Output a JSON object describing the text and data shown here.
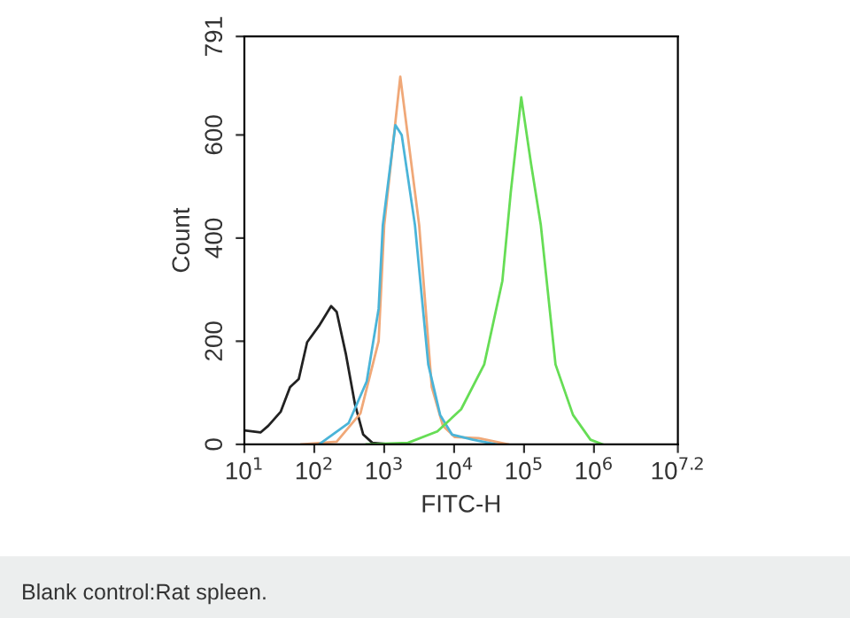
{
  "chart_data": {
    "type": "line",
    "xlabel": "FITC-H",
    "ylabel": "Count",
    "log": "x",
    "xlim": [
      10,
      15848932
    ],
    "ylim": [
      0,
      791
    ],
    "xticks": [
      {
        "value": 10,
        "label": "10$^{1}$"
      },
      {
        "value": 100,
        "label": "10$^{2}$"
      },
      {
        "value": 1000,
        "label": "10$^{3}$"
      },
      {
        "value": 10000,
        "label": "10$^{4}$"
      },
      {
        "value": 100000,
        "label": "10$^{5}$"
      },
      {
        "value": 1000000,
        "label": "10$^{6}$"
      },
      {
        "value": 15848932,
        "label": "10$^{7.2}$"
      }
    ],
    "yticks": [
      0,
      200,
      400,
      600,
      791
    ],
    "grid": false,
    "marker": "none",
    "line_style": "solid",
    "annotations": [
      "Blank control:Rat spleen."
    ],
    "series": [
      {
        "color": "#222222",
        "x": [
          10,
          17,
          22,
          33,
          45,
          60,
          79,
          117,
          174,
          209,
          282,
          380,
          501,
          676,
          1202
        ],
        "values": [
          27,
          23,
          36,
          63,
          111,
          127,
          198,
          230,
          268,
          257,
          176,
          79,
          19,
          3,
          0
        ]
      },
      {
        "color": "#f0a878",
        "x": [
          66,
          209,
          457,
          832,
          1000,
          1698,
          3162,
          4786,
          6918,
          10233,
          22387,
          58884
        ],
        "values": [
          0,
          5,
          60,
          200,
          425,
          713,
          425,
          111,
          36,
          14,
          12,
          0
        ]
      },
      {
        "color": "#4ab4d8",
        "x": [
          117,
          309,
          562,
          832,
          955,
          1445,
          1778,
          2754,
          4266,
          6310,
          9333,
          18621,
          39811
        ],
        "values": [
          0,
          41,
          122,
          263,
          425,
          619,
          600,
          425,
          155,
          57,
          19,
          9,
          0
        ]
      },
      {
        "color": "#66dd55",
        "x": [
          562,
          2188,
          5754,
          12589,
          26915,
          48978,
          64565,
          91201,
          125893,
          173780,
          281838,
          501187,
          891251,
          1318257
        ],
        "values": [
          0,
          3,
          25,
          68,
          155,
          317,
          489,
          673,
          544,
          425,
          155,
          57,
          9,
          0
        ]
      }
    ]
  }
}
